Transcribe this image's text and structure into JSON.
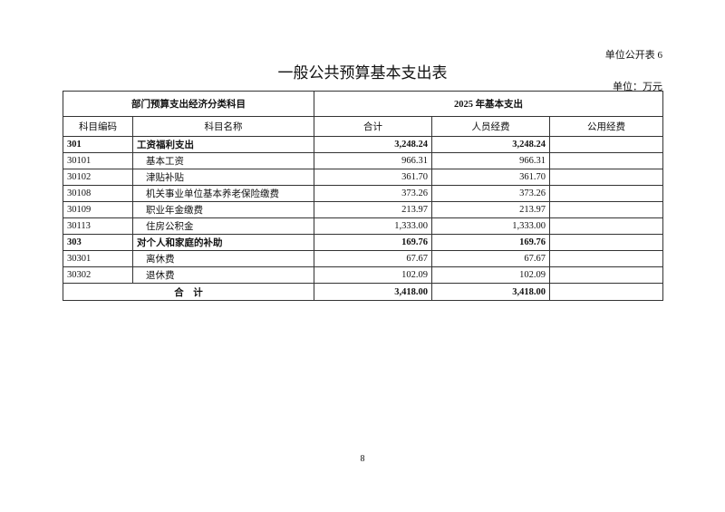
{
  "form_no": "单位公开表 6",
  "title": "一般公共预算基本支出表",
  "unit": "单位：万元",
  "header": {
    "group_left": "部门预算支出经济分类科目",
    "group_right": "2025 年基本支出",
    "code": "科目编码",
    "name": "科目名称",
    "total": "合计",
    "personnel": "人员经费",
    "public": "公用经费"
  },
  "rows": [
    {
      "code": "301",
      "name": "工资福利支出",
      "total": "3,248.24",
      "personnel": "3,248.24",
      "public": "",
      "bold": true
    },
    {
      "code": "30101",
      "name": "基本工资",
      "total": "966.31",
      "personnel": "966.31",
      "public": ""
    },
    {
      "code": "30102",
      "name": "津贴补贴",
      "total": "361.70",
      "personnel": "361.70",
      "public": ""
    },
    {
      "code": "30108",
      "name": "机关事业单位基本养老保险缴费",
      "total": "373.26",
      "personnel": "373.26",
      "public": ""
    },
    {
      "code": "30109",
      "name": "职业年金缴费",
      "total": "213.97",
      "personnel": "213.97",
      "public": ""
    },
    {
      "code": "30113",
      "name": "住房公积金",
      "total": "1,333.00",
      "personnel": "1,333.00",
      "public": ""
    },
    {
      "code": "303",
      "name": "对个人和家庭的补助",
      "total": "169.76",
      "personnel": "169.76",
      "public": "",
      "bold": true
    },
    {
      "code": "30301",
      "name": "离休费",
      "total": "67.67",
      "personnel": "67.67",
      "public": ""
    },
    {
      "code": "30302",
      "name": "退休费",
      "total": "102.09",
      "personnel": "102.09",
      "public": ""
    }
  ],
  "total_row": {
    "label": "合　计",
    "total": "3,418.00",
    "personnel": "3,418.00",
    "public": ""
  },
  "page_number": "8"
}
